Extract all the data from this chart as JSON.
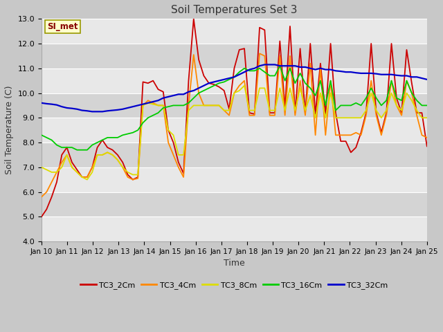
{
  "title": "Soil Temperatures Set 3",
  "xlabel": "Time",
  "ylabel": "Soil Temperature (C)",
  "ylim": [
    4.0,
    13.0
  ],
  "yticks": [
    4.0,
    5.0,
    6.0,
    7.0,
    8.0,
    9.0,
    10.0,
    11.0,
    12.0,
    13.0
  ],
  "xtick_labels": [
    "Jan 10",
    "Jan 11",
    "Jan 12",
    "Jan 13",
    "Jan 14",
    "Jan 15",
    "Jan 16",
    "Jan 17",
    "Jan 18",
    "Jan 19",
    "Jan 20",
    "Jan 21",
    "Jan 22",
    "Jan 23",
    "Jan 24",
    "Jan 25"
  ],
  "legend_label": "SI_met",
  "series_labels": [
    "TC3_2Cm",
    "TC3_4Cm",
    "TC3_8Cm",
    "TC3_16Cm",
    "TC3_32Cm"
  ],
  "colors": [
    "#cc0000",
    "#ff8800",
    "#dddd00",
    "#00cc00",
    "#0000cc"
  ],
  "fig_bg": "#c8c8c8",
  "plot_bg_light": "#e8e8e8",
  "plot_bg_dark": "#d4d4d4",
  "TC3_2Cm": [
    5.0,
    5.3,
    5.8,
    6.4,
    7.5,
    7.8,
    7.2,
    6.9,
    6.6,
    6.6,
    7.0,
    7.8,
    8.1,
    7.8,
    7.7,
    7.5,
    7.2,
    6.7,
    6.5,
    6.6,
    10.45,
    10.4,
    10.5,
    10.15,
    10.05,
    8.5,
    8.0,
    7.2,
    6.75,
    10.5,
    13.0,
    11.35,
    10.7,
    10.4,
    10.35,
    10.25,
    10.1,
    9.35,
    11.0,
    11.75,
    11.8,
    9.2,
    9.15,
    12.65,
    12.55,
    9.2,
    9.2,
    12.1,
    9.4,
    12.7,
    9.2,
    11.8,
    9.2,
    12.0,
    9.15,
    11.2,
    9.15,
    12.0,
    9.2,
    8.05,
    8.05,
    7.6,
    7.8,
    8.4,
    9.2,
    12.0,
    9.2,
    8.4,
    9.2,
    12.0,
    9.8,
    9.2,
    11.75,
    10.4,
    9.2,
    9.2,
    7.85
  ],
  "TC3_4Cm": [
    5.8,
    6.0,
    6.4,
    6.8,
    7.2,
    7.5,
    7.0,
    6.8,
    6.6,
    6.6,
    7.0,
    7.5,
    7.5,
    7.6,
    7.5,
    7.3,
    7.0,
    6.6,
    6.5,
    6.55,
    9.5,
    9.7,
    9.6,
    9.5,
    9.5,
    8.0,
    7.5,
    7.0,
    6.6,
    9.5,
    11.55,
    10.0,
    9.5,
    9.5,
    9.5,
    9.5,
    9.3,
    9.1,
    10.0,
    10.3,
    10.5,
    9.1,
    9.1,
    11.6,
    11.5,
    9.1,
    9.1,
    11.5,
    9.1,
    11.5,
    9.1,
    10.5,
    9.1,
    11.2,
    8.3,
    11.0,
    8.3,
    10.5,
    8.3,
    8.3,
    8.3,
    8.3,
    8.4,
    8.3,
    9.1,
    10.5,
    9.1,
    8.3,
    9.1,
    10.5,
    9.5,
    9.1,
    10.5,
    10.0,
    9.1,
    8.3,
    8.2
  ],
  "TC3_8Cm": [
    7.0,
    6.9,
    6.8,
    6.8,
    7.0,
    7.5,
    7.0,
    6.8,
    6.6,
    6.5,
    6.8,
    7.5,
    7.5,
    7.6,
    7.5,
    7.3,
    7.0,
    6.8,
    6.7,
    6.7,
    9.5,
    9.6,
    9.55,
    9.5,
    9.5,
    8.5,
    8.3,
    7.5,
    7.5,
    9.3,
    9.5,
    9.5,
    9.5,
    9.5,
    9.5,
    9.5,
    9.3,
    9.3,
    10.0,
    10.1,
    10.3,
    9.3,
    9.3,
    10.2,
    10.2,
    9.3,
    9.3,
    10.2,
    9.3,
    10.2,
    9.3,
    10.2,
    9.3,
    9.9,
    9.0,
    10.0,
    9.0,
    10.0,
    9.0,
    9.0,
    9.0,
    9.0,
    9.0,
    9.0,
    9.3,
    10.0,
    9.3,
    9.0,
    9.3,
    10.0,
    9.5,
    9.3,
    10.0,
    9.7,
    9.3,
    9.0,
    9.0
  ],
  "TC3_16Cm": [
    8.3,
    8.2,
    8.1,
    7.9,
    7.8,
    7.8,
    7.8,
    7.7,
    7.7,
    7.7,
    7.9,
    8.0,
    8.1,
    8.2,
    8.2,
    8.2,
    8.3,
    8.35,
    8.4,
    8.5,
    8.8,
    9.0,
    9.1,
    9.2,
    9.4,
    9.45,
    9.5,
    9.5,
    9.5,
    9.6,
    9.8,
    10.0,
    10.1,
    10.2,
    10.3,
    10.4,
    10.45,
    10.55,
    10.65,
    10.85,
    11.0,
    10.9,
    10.9,
    11.0,
    10.85,
    10.7,
    10.7,
    11.1,
    10.5,
    11.0,
    10.4,
    10.8,
    10.4,
    10.2,
    9.9,
    10.5,
    9.5,
    10.5,
    9.3,
    9.5,
    9.5,
    9.5,
    9.6,
    9.5,
    9.8,
    10.2,
    9.8,
    9.5,
    9.7,
    10.5,
    9.8,
    9.7,
    10.5,
    10.0,
    9.7,
    9.5,
    9.5
  ],
  "TC3_32Cm": [
    9.6,
    9.57,
    9.55,
    9.52,
    9.45,
    9.4,
    9.38,
    9.35,
    9.3,
    9.28,
    9.25,
    9.25,
    9.25,
    9.28,
    9.3,
    9.32,
    9.35,
    9.4,
    9.45,
    9.5,
    9.55,
    9.6,
    9.65,
    9.7,
    9.8,
    9.85,
    9.9,
    9.95,
    9.95,
    10.05,
    10.1,
    10.2,
    10.3,
    10.4,
    10.45,
    10.5,
    10.55,
    10.6,
    10.65,
    10.75,
    10.85,
    10.95,
    11.0,
    11.1,
    11.15,
    11.15,
    11.15,
    11.1,
    11.1,
    11.1,
    11.1,
    11.05,
    11.05,
    11.0,
    10.95,
    11.0,
    10.95,
    10.95,
    10.9,
    10.88,
    10.85,
    10.85,
    10.82,
    10.8,
    10.8,
    10.8,
    10.78,
    10.75,
    10.75,
    10.75,
    10.72,
    10.7,
    10.7,
    10.65,
    10.65,
    10.6,
    10.55
  ]
}
